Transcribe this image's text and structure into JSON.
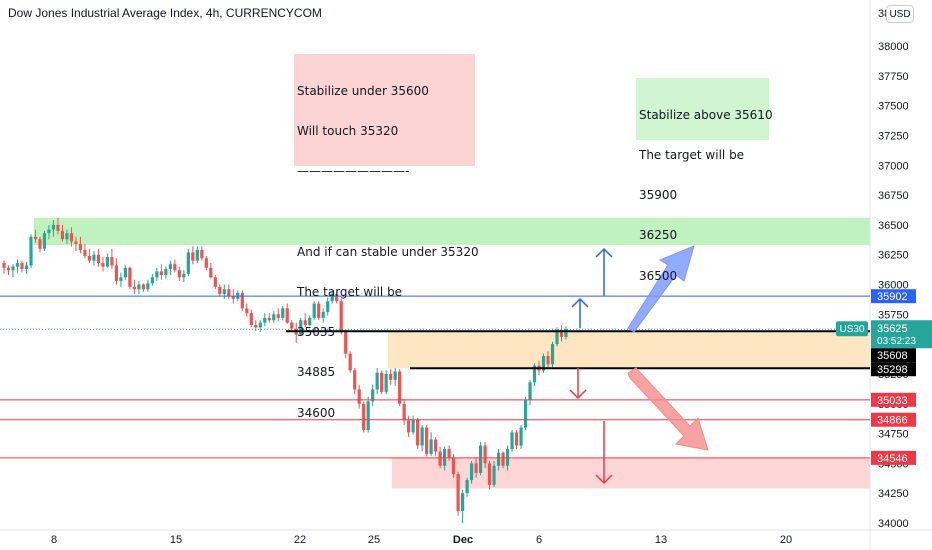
{
  "header": {
    "title": "Dow Jones Industrial Average Index, 4h, CURRENCYCOM",
    "currency": "USD",
    "top_tick": "38"
  },
  "annotations": {
    "bearish": [
      "Stabilize under 35600",
      "Will touch 35320",
      "—————————-",
      "",
      "And if can stable under 35320",
      "The target will be",
      "35035",
      "34885",
      "34600"
    ],
    "bullish": [
      "Stabilize above 35610",
      "The target will be",
      "35900",
      "36250",
      "36500"
    ]
  },
  "colors": {
    "up": "#26a69a",
    "down": "#ef5350",
    "blue": "#2962ff",
    "red_line": "#f23645",
    "zone_green": "#bff2bf",
    "zone_orange": "#ffe6c2",
    "zone_red": "#fdd7d7"
  },
  "chart_data": {
    "type": "candlestick",
    "title": "Dow Jones Industrial Average Index, 4h, CURRENCYCOM",
    "x_ticks": [
      "8",
      "15",
      "22",
      "25",
      "Dec",
      "6",
      "13",
      "20"
    ],
    "y_ticks": [
      "38000",
      "37750",
      "37500",
      "37250",
      "37000",
      "36750",
      "36500",
      "36250",
      "36000",
      "35750",
      "35500",
      "35250",
      "35000",
      "34750",
      "34500",
      "34250",
      "34000"
    ],
    "ylim": [
      33970,
      38250
    ],
    "price_labels": [
      {
        "text": "US30",
        "value": "35625",
        "countdown": "03:52:23",
        "price": 35625,
        "kind": "current"
      },
      {
        "text": "35902",
        "price": 35902,
        "kind": "blue"
      },
      {
        "text": "35608",
        "price": 35608,
        "kind": "black"
      },
      {
        "text": "35298",
        "price": 35298,
        "kind": "black"
      },
      {
        "text": "35033",
        "price": 35033,
        "kind": "red"
      },
      {
        "text": "34866",
        "price": 34866,
        "kind": "red"
      },
      {
        "text": "34546",
        "price": 34546,
        "kind": "red"
      }
    ],
    "candles_ohlc": [
      [
        36180,
        36200,
        36090,
        36140
      ],
      [
        36140,
        36160,
        36080,
        36120
      ],
      [
        36120,
        36170,
        36060,
        36150
      ],
      [
        36150,
        36210,
        36100,
        36180
      ],
      [
        36180,
        36200,
        36100,
        36130
      ],
      [
        36130,
        36190,
        36090,
        36160
      ],
      [
        36160,
        36420,
        36140,
        36400
      ],
      [
        36400,
        36460,
        36350,
        36380
      ],
      [
        36380,
        36400,
        36270,
        36300
      ],
      [
        36300,
        36450,
        36280,
        36430
      ],
      [
        36430,
        36500,
        36380,
        36460
      ],
      [
        36460,
        36540,
        36400,
        36500
      ],
      [
        36500,
        36560,
        36420,
        36450
      ],
      [
        36450,
        36500,
        36360,
        36380
      ],
      [
        36380,
        36460,
        36340,
        36430
      ],
      [
        36430,
        36480,
        36320,
        36360
      ],
      [
        36360,
        36400,
        36280,
        36340
      ],
      [
        36340,
        36400,
        36260,
        36290
      ],
      [
        36290,
        36340,
        36220,
        36240
      ],
      [
        36240,
        36300,
        36180,
        36200
      ],
      [
        36200,
        36280,
        36160,
        36250
      ],
      [
        36250,
        36300,
        36150,
        36180
      ],
      [
        36180,
        36230,
        36110,
        36150
      ],
      [
        36150,
        36260,
        36140,
        36230
      ],
      [
        36230,
        36300,
        36130,
        36160
      ],
      [
        36160,
        36220,
        36000,
        36030
      ],
      [
        36030,
        36100,
        35980,
        36060
      ],
      [
        36060,
        36160,
        36040,
        36140
      ],
      [
        36140,
        36150,
        35960,
        35980
      ],
      [
        35980,
        36040,
        35920,
        35960
      ],
      [
        35960,
        36030,
        35920,
        36000
      ],
      [
        36000,
        36010,
        35940,
        35960
      ],
      [
        35960,
        36040,
        35940,
        36010
      ],
      [
        36010,
        36090,
        35990,
        36060
      ],
      [
        36060,
        36140,
        36030,
        36110
      ],
      [
        36110,
        36170,
        36040,
        36080
      ],
      [
        36080,
        36150,
        36050,
        36130
      ],
      [
        36130,
        36200,
        36080,
        36170
      ],
      [
        36170,
        36210,
        36100,
        36120
      ],
      [
        36120,
        36150,
        36030,
        36060
      ],
      [
        36060,
        36120,
        36020,
        36090
      ],
      [
        36090,
        36300,
        36070,
        36270
      ],
      [
        36270,
        36320,
        36170,
        36200
      ],
      [
        36200,
        36320,
        36180,
        36290
      ],
      [
        36290,
        36320,
        36200,
        36220
      ],
      [
        36220,
        36240,
        36120,
        36140
      ],
      [
        36140,
        36180,
        36050,
        36060
      ],
      [
        36060,
        36080,
        35960,
        35980
      ],
      [
        35980,
        36000,
        35900,
        35920
      ],
      [
        35920,
        36000,
        35880,
        35960
      ],
      [
        35960,
        36000,
        35880,
        35900
      ],
      [
        35900,
        35960,
        35840,
        35880
      ],
      [
        35880,
        35950,
        35860,
        35930
      ],
      [
        35930,
        35950,
        35780,
        35800
      ],
      [
        35800,
        35840,
        35730,
        35760
      ],
      [
        35760,
        35790,
        35640,
        35660
      ],
      [
        35660,
        35700,
        35610,
        35640
      ],
      [
        35640,
        35700,
        35600,
        35680
      ],
      [
        35680,
        35760,
        35650,
        35720
      ],
      [
        35720,
        35760,
        35680,
        35700
      ],
      [
        35700,
        35780,
        35680,
        35750
      ],
      [
        35750,
        35800,
        35690,
        35720
      ],
      [
        35720,
        35820,
        35700,
        35800
      ],
      [
        35800,
        35840,
        35670,
        35680
      ],
      [
        35680,
        35700,
        35600,
        35630
      ],
      [
        35630,
        35680,
        35510,
        35580
      ],
      [
        35580,
        35720,
        35570,
        35700
      ],
      [
        35700,
        35760,
        35640,
        35660
      ],
      [
        35660,
        35740,
        35650,
        35720
      ],
      [
        35720,
        35860,
        35700,
        35840
      ],
      [
        35840,
        35860,
        35700,
        35720
      ],
      [
        35720,
        35800,
        35680,
        35770
      ],
      [
        35770,
        35890,
        35740,
        35860
      ],
      [
        35860,
        35950,
        35840,
        35920
      ],
      [
        35920,
        35940,
        35840,
        35860
      ],
      [
        35860,
        35880,
        35580,
        35600
      ],
      [
        35600,
        35620,
        35380,
        35420
      ],
      [
        35420,
        35440,
        35260,
        35280
      ],
      [
        35280,
        35300,
        35080,
        35120
      ],
      [
        35120,
        35160,
        34960,
        35000
      ],
      [
        35000,
        35020,
        34760,
        34780
      ],
      [
        34780,
        35060,
        34760,
        35020
      ],
      [
        35020,
        35160,
        34980,
        35120
      ],
      [
        35120,
        35300,
        35080,
        35260
      ],
      [
        35260,
        35280,
        35080,
        35100
      ],
      [
        35100,
        35280,
        35080,
        35250
      ],
      [
        35250,
        35290,
        35160,
        35200
      ],
      [
        35200,
        35300,
        35150,
        35270
      ],
      [
        35270,
        35290,
        34980,
        35000
      ],
      [
        35000,
        35040,
        34820,
        34860
      ],
      [
        34860,
        34900,
        34720,
        34760
      ],
      [
        34760,
        34900,
        34740,
        34870
      ],
      [
        34870,
        34880,
        34620,
        34650
      ],
      [
        34650,
        34820,
        34600,
        34800
      ],
      [
        34800,
        34820,
        34560,
        34580
      ],
      [
        34580,
        34760,
        34560,
        34700
      ],
      [
        34700,
        34720,
        34560,
        34600
      ],
      [
        34600,
        34640,
        34460,
        34480
      ],
      [
        34480,
        34640,
        34440,
        34620
      ],
      [
        34620,
        34650,
        34520,
        34550
      ],
      [
        34550,
        34580,
        34380,
        34410
      ],
      [
        34410,
        34430,
        34060,
        34100
      ],
      [
        34100,
        34280,
        34000,
        34250
      ],
      [
        34250,
        34380,
        34220,
        34360
      ],
      [
        34360,
        34520,
        34330,
        34500
      ],
      [
        34500,
        34550,
        34380,
        34420
      ],
      [
        34420,
        34680,
        34400,
        34650
      ],
      [
        34650,
        34680,
        34460,
        34500
      ],
      [
        34500,
        34520,
        34280,
        34320
      ],
      [
        34320,
        34520,
        34300,
        34480
      ],
      [
        34480,
        34620,
        34440,
        34590
      ],
      [
        34590,
        34600,
        34460,
        34480
      ],
      [
        34480,
        34650,
        34440,
        34620
      ],
      [
        34620,
        34780,
        34600,
        34760
      ],
      [
        34760,
        34780,
        34620,
        34650
      ],
      [
        34650,
        34820,
        34620,
        34800
      ],
      [
        34800,
        35060,
        34780,
        35030
      ],
      [
        35030,
        35200,
        34990,
        35180
      ],
      [
        35180,
        35340,
        35150,
        35320
      ],
      [
        35320,
        35360,
        35240,
        35280
      ],
      [
        35280,
        35420,
        35260,
        35400
      ],
      [
        35400,
        35440,
        35300,
        35330
      ],
      [
        35330,
        35520,
        35300,
        35500
      ],
      [
        35500,
        35640,
        35480,
        35620
      ],
      [
        35620,
        35660,
        35520,
        35560
      ],
      [
        35560,
        35650,
        35540,
        35625
      ]
    ]
  }
}
